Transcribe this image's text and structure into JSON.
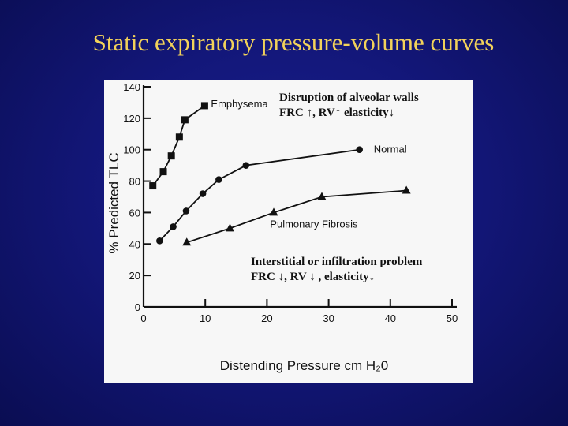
{
  "slide": {
    "title": "Static expiratory pressure-volume curves"
  },
  "annotations": {
    "emphysema_line1": "Disruption of alveolar walls",
    "emphysema_line2": "FRC ↑, RV↑ elasticity↓",
    "fibrosis_line1": "Interstitial or infiltration problem",
    "fibrosis_line2": "FRC ↓, RV ↓ , elasticity↓"
  },
  "colors": {
    "background": "#13177a",
    "title": "#f2d25a",
    "figure": "#f7f7f7",
    "ink": "#111111"
  },
  "chart_data": {
    "type": "line",
    "title": "",
    "xlabel": "Distending Pressure cm H₂0",
    "ylabel": "% Predicted TLC",
    "xlim": [
      0,
      50
    ],
    "ylim": [
      0,
      140
    ],
    "xticks": [
      0,
      10,
      20,
      30,
      40,
      50
    ],
    "yticks": [
      0,
      20,
      40,
      60,
      80,
      100,
      120,
      140
    ],
    "grid": false,
    "legend": "none (series labelled inline)",
    "series": [
      {
        "name": "Emphysema",
        "marker": "square",
        "x": [
          1.5,
          3.2,
          4.5,
          5.8,
          6.7,
          9.9
        ],
        "y": [
          77,
          86,
          96,
          108,
          119,
          128
        ]
      },
      {
        "name": "Normal",
        "marker": "circle",
        "x": [
          2.6,
          4.8,
          6.9,
          9.6,
          12.2,
          16.6,
          35.0
        ],
        "y": [
          42,
          51,
          61,
          72,
          81,
          90,
          100
        ]
      },
      {
        "name": "Pulmonary Fibrosis",
        "marker": "triangle",
        "x": [
          7.0,
          14.0,
          21.1,
          28.9,
          42.6
        ],
        "y": [
          41,
          50,
          60,
          70,
          74
        ]
      }
    ]
  }
}
